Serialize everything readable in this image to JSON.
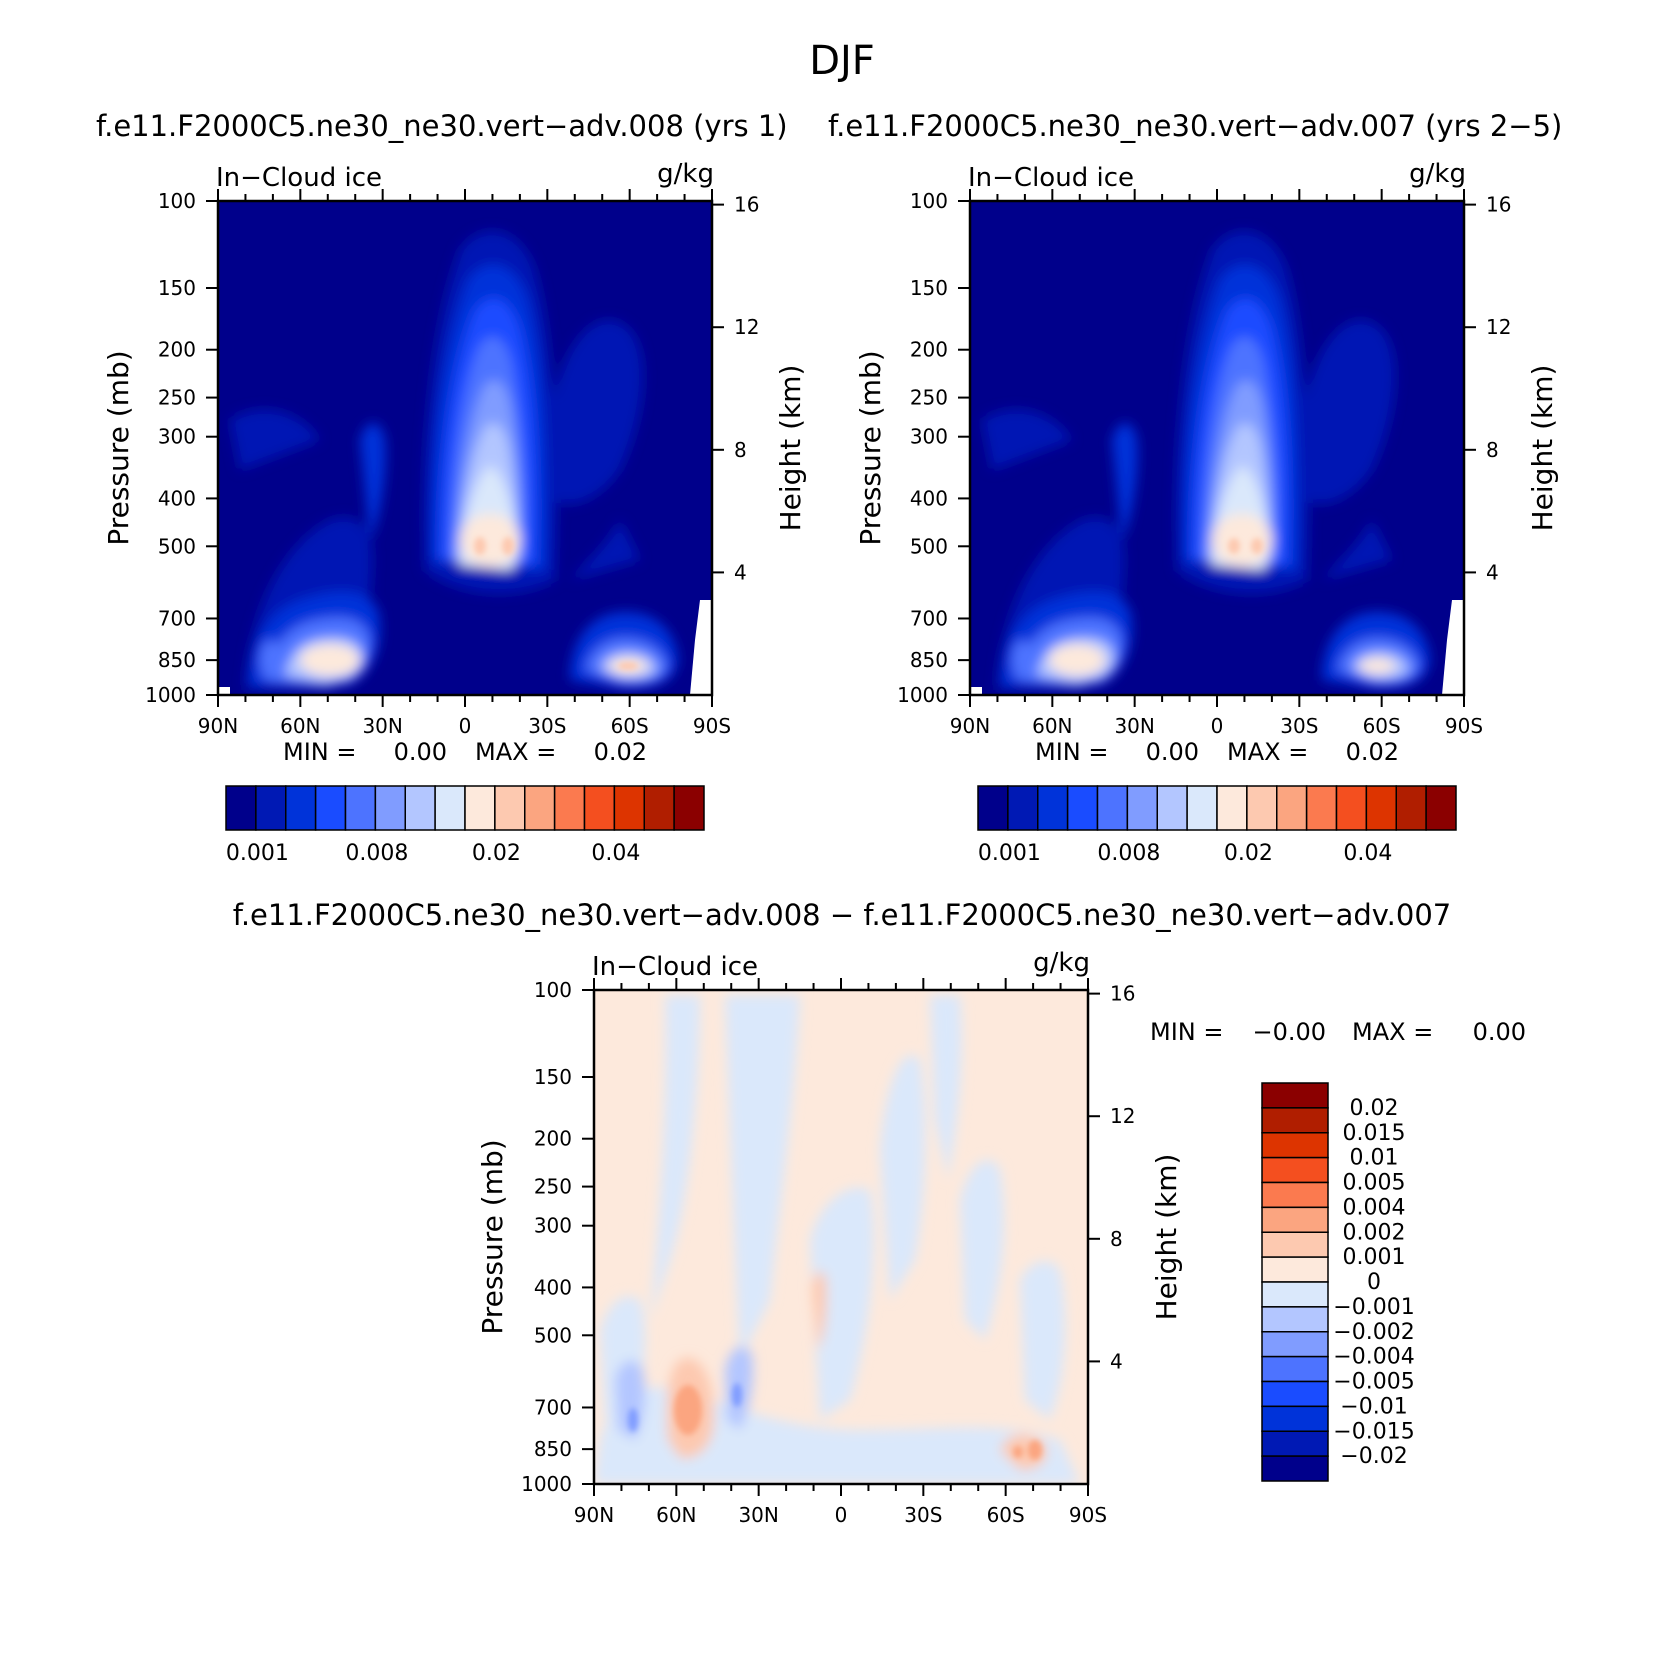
{
  "page": {
    "title": "DJF"
  },
  "panels": [
    {
      "id": "left",
      "case_title": "f.e11.F2000C5.ne30_ne30.vert−adv.008 (yrs 1)",
      "variable": "In−Cloud ice",
      "units": "g/kg",
      "ylabel_left": "Pressure (mb)",
      "ylabel_right": "Height (km)",
      "min_label": "MIN =",
      "min_value": "0.00",
      "max_label": "MAX =",
      "max_value": "0.02"
    },
    {
      "id": "right",
      "case_title": "f.e11.F2000C5.ne30_ne30.vert−adv.007 (yrs 2−5)",
      "variable": "In−Cloud ice",
      "units": "g/kg",
      "ylabel_left": "Pressure (mb)",
      "ylabel_right": "Height (km)",
      "min_label": "MIN =",
      "min_value": "0.00",
      "max_label": "MAX =",
      "max_value": "0.02"
    },
    {
      "id": "diff",
      "case_title": "f.e11.F2000C5.ne30_ne30.vert−adv.008 − f.e11.F2000C5.ne30_ne30.vert−adv.007",
      "variable": "In−Cloud ice",
      "units": "g/kg",
      "ylabel_left": "Pressure (mb)",
      "ylabel_right": "Height (km)",
      "min_label": "MIN =",
      "min_value": "−0.00",
      "max_label": "MAX =",
      "max_value": "0.00"
    }
  ],
  "colorbar_top": {
    "colors": [
      "#00008b",
      "#0019b4",
      "#0033d9",
      "#1a4cff",
      "#4d73ff",
      "#809cff",
      "#b3c6ff",
      "#dae8fb",
      "#fde9dc",
      "#fdc9b0",
      "#fba580",
      "#fb7a4f",
      "#f44f1f",
      "#dd3400",
      "#b01e00",
      "#8b0000"
    ],
    "tick_labels": [
      "0.001",
      "0.008",
      "0.02",
      "0.04"
    ]
  },
  "colorbar_diff": {
    "colors": [
      "#8b0000",
      "#b01e00",
      "#dd3400",
      "#f44f1f",
      "#fb7a4f",
      "#fba580",
      "#fdc9b0",
      "#fde9dc",
      "#dae8fb",
      "#b3c6ff",
      "#809cff",
      "#4d73ff",
      "#1a4cff",
      "#0033d9",
      "#0019b4",
      "#00008b"
    ],
    "levels": [
      "0.02",
      "0.015",
      "0.01",
      "0.005",
      "0.004",
      "0.002",
      "0.001",
      "0",
      "−0.001",
      "−0.002",
      "−0.004",
      "−0.005",
      "−0.01",
      "−0.015",
      "−0.02"
    ]
  },
  "chart_data": [
    {
      "type": "heatmap",
      "title": "f.e11.F2000C5.ne30_ne30.vert−adv.008 (yrs 1)",
      "x_ticks": [
        "90N",
        "60N",
        "30N",
        "0",
        "30S",
        "60S",
        "90S"
      ],
      "x_tick_values": [
        90,
        60,
        30,
        0,
        -30,
        -60,
        -90
      ],
      "y_ticks_left": [
        "100",
        "150",
        "200",
        "250",
        "300",
        "400",
        "500",
        "700",
        "850",
        "1000"
      ],
      "y_tick_values_left": [
        100,
        150,
        200,
        250,
        300,
        400,
        500,
        700,
        850,
        1000
      ],
      "y_ticks_right": [
        "16",
        "12",
        "8",
        "4"
      ],
      "y_scale": "log pressure, reversed",
      "xlim": [
        90,
        -90
      ],
      "ylim": [
        1000,
        100
      ],
      "min": 0.0,
      "max": 0.02,
      "contour_levels": [
        0.001,
        0.008,
        0.02,
        0.04
      ]
    },
    {
      "type": "heatmap",
      "title": "f.e11.F2000C5.ne30_ne30.vert−adv.007 (yrs 2−5)",
      "x_ticks": [
        "90N",
        "60N",
        "30N",
        "0",
        "30S",
        "60S",
        "90S"
      ],
      "x_tick_values": [
        90,
        60,
        30,
        0,
        -30,
        -60,
        -90
      ],
      "y_ticks_left": [
        "100",
        "150",
        "200",
        "250",
        "300",
        "400",
        "500",
        "700",
        "850",
        "1000"
      ],
      "y_tick_values_left": [
        100,
        150,
        200,
        250,
        300,
        400,
        500,
        700,
        850,
        1000
      ],
      "y_ticks_right": [
        "16",
        "12",
        "8",
        "4"
      ],
      "y_scale": "log pressure, reversed",
      "xlim": [
        90,
        -90
      ],
      "ylim": [
        1000,
        100
      ],
      "min": 0.0,
      "max": 0.02,
      "contour_levels": [
        0.001,
        0.008,
        0.02,
        0.04
      ]
    },
    {
      "type": "heatmap",
      "title": "f.e11.F2000C5.ne30_ne30.vert−adv.008 − f.e11.F2000C5.ne30_ne30.vert−adv.007",
      "x_ticks": [
        "90N",
        "60N",
        "30N",
        "0",
        "30S",
        "60S",
        "90S"
      ],
      "x_tick_values": [
        90,
        60,
        30,
        0,
        -30,
        -60,
        -90
      ],
      "y_ticks_left": [
        "100",
        "150",
        "200",
        "250",
        "300",
        "400",
        "500",
        "700",
        "850",
        "1000"
      ],
      "y_tick_values_left": [
        100,
        150,
        200,
        250,
        300,
        400,
        500,
        700,
        850,
        1000
      ],
      "y_ticks_right": [
        "16",
        "12",
        "8",
        "4"
      ],
      "y_scale": "log pressure, reversed",
      "xlim": [
        90,
        -90
      ],
      "ylim": [
        1000,
        100
      ],
      "min": -0.0,
      "max": 0.0,
      "contour_levels": [
        -0.02,
        -0.015,
        -0.01,
        -0.005,
        -0.004,
        -0.002,
        -0.001,
        0,
        0.001,
        0.002,
        0.004,
        0.005,
        0.01,
        0.015,
        0.02
      ]
    }
  ]
}
